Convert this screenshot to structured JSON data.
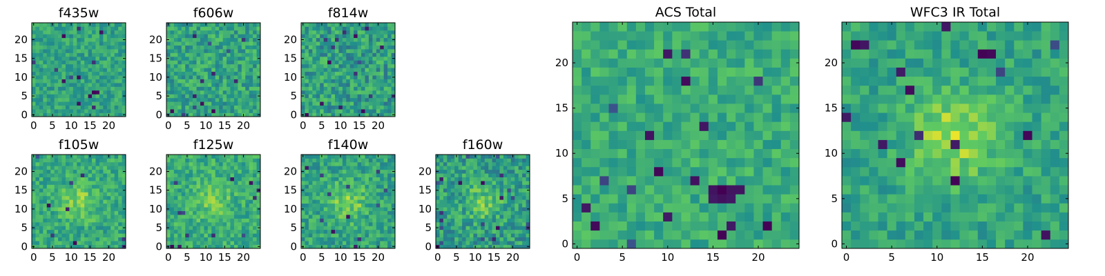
{
  "chart_data": [
    {
      "type": "heatmap",
      "title": "f435w",
      "size": 25,
      "xticks": [
        0,
        5,
        10,
        15,
        20
      ],
      "yticks": [
        0,
        5,
        10,
        15,
        20
      ],
      "seed": 11,
      "center": 0.58,
      "noise": 0.13,
      "blob": 0.0,
      "darkRate": 0.008,
      "darkSpots": [
        [
          15,
          5
        ],
        [
          16,
          6
        ],
        [
          17,
          6
        ]
      ]
    },
    {
      "type": "heatmap",
      "title": "f606w",
      "size": 25,
      "xticks": [
        0,
        5,
        10,
        15,
        20
      ],
      "yticks": [
        0,
        5,
        10,
        15,
        20
      ],
      "seed": 23,
      "center": 0.58,
      "noise": 0.16,
      "blob": 0.0,
      "darkRate": 0.015,
      "darkSpots": [
        [
          1,
          1
        ],
        [
          12,
          1
        ]
      ]
    },
    {
      "type": "heatmap",
      "title": "f814w",
      "size": 25,
      "xticks": [
        0,
        5,
        10,
        15,
        20
      ],
      "yticks": [
        0,
        5,
        10,
        15,
        20
      ],
      "seed": 37,
      "center": 0.56,
      "noise": 0.18,
      "blob": 0.0,
      "darkRate": 0.02,
      "darkSpots": [
        [
          1,
          0
        ],
        [
          21,
          18
        ]
      ]
    },
    {
      "type": "heatmap",
      "title": "f105w",
      "size": 25,
      "xticks": [
        0,
        5,
        10,
        15,
        20
      ],
      "yticks": [
        0,
        5,
        10,
        15,
        20
      ],
      "seed": 41,
      "center": 0.6,
      "noise": 0.14,
      "blob": 0.2,
      "darkRate": 0.01,
      "darkSpots": [
        [
          11,
          1
        ]
      ]
    },
    {
      "type": "heatmap",
      "title": "f125w",
      "size": 25,
      "xticks": [
        0,
        5,
        10,
        15,
        20
      ],
      "yticks": [
        0,
        5,
        10,
        15,
        20
      ],
      "seed": 53,
      "center": 0.62,
      "noise": 0.14,
      "blob": 0.15,
      "darkRate": 0.01,
      "darkSpots": [
        [
          1,
          0
        ],
        [
          3,
          0
        ]
      ]
    },
    {
      "type": "heatmap",
      "title": "f140w",
      "size": 25,
      "xticks": [
        0,
        5,
        10,
        15,
        20
      ],
      "yticks": [
        0,
        5,
        10,
        15,
        20
      ],
      "seed": 67,
      "center": 0.58,
      "noise": 0.15,
      "blob": 0.22,
      "darkRate": 0.01,
      "darkSpots": [
        [
          8,
          4
        ]
      ]
    },
    {
      "type": "heatmap",
      "title": "f160w",
      "size": 25,
      "xticks": [
        0,
        5,
        10,
        15,
        20
      ],
      "yticks": [
        0,
        5,
        10,
        15,
        20
      ],
      "seed": 79,
      "center": 0.55,
      "noise": 0.17,
      "blob": 0.2,
      "darkRate": 0.025,
      "darkSpots": [
        [
          0,
          0
        ],
        [
          17,
          13
        ]
      ]
    },
    {
      "type": "heatmap",
      "title": "ACS Total",
      "size": 25,
      "xticks": [
        0,
        5,
        10,
        15,
        20
      ],
      "yticks": [
        0,
        5,
        10,
        15,
        20
      ],
      "seed": 97,
      "center": 0.62,
      "noise": 0.12,
      "blob": 0.0,
      "darkRate": 0.012,
      "darkSpots": [
        [
          15,
          5
        ],
        [
          16,
          5
        ],
        [
          17,
          5
        ],
        [
          15,
          6
        ],
        [
          16,
          6
        ],
        [
          17,
          6
        ],
        [
          18,
          6
        ],
        [
          9,
          8
        ],
        [
          13,
          7
        ],
        [
          1,
          4
        ],
        [
          2,
          2
        ],
        [
          10,
          3
        ],
        [
          8,
          12
        ],
        [
          17,
          2
        ],
        [
          21,
          2
        ],
        [
          16,
          1
        ],
        [
          10,
          21
        ]
      ]
    },
    {
      "type": "heatmap",
      "title": "WFC3 IR Total",
      "size": 25,
      "xticks": [
        0,
        5,
        10,
        15,
        20
      ],
      "yticks": [
        0,
        5,
        10,
        15,
        20
      ],
      "seed": 113,
      "center": 0.58,
      "noise": 0.12,
      "blob": 0.28,
      "darkRate": 0.008,
      "darkSpots": [
        [
          11,
          24
        ],
        [
          15,
          21
        ],
        [
          16,
          21
        ],
        [
          7,
          17
        ],
        [
          0,
          14
        ],
        [
          20,
          12
        ],
        [
          4,
          11
        ],
        [
          22,
          1
        ],
        [
          12,
          7
        ],
        [
          2,
          22
        ],
        [
          1,
          22
        ]
      ]
    }
  ],
  "colormap": {
    "name": "viridis",
    "stops": [
      "#440154",
      "#3b528b",
      "#21918c",
      "#5ec962",
      "#fde725"
    ]
  }
}
